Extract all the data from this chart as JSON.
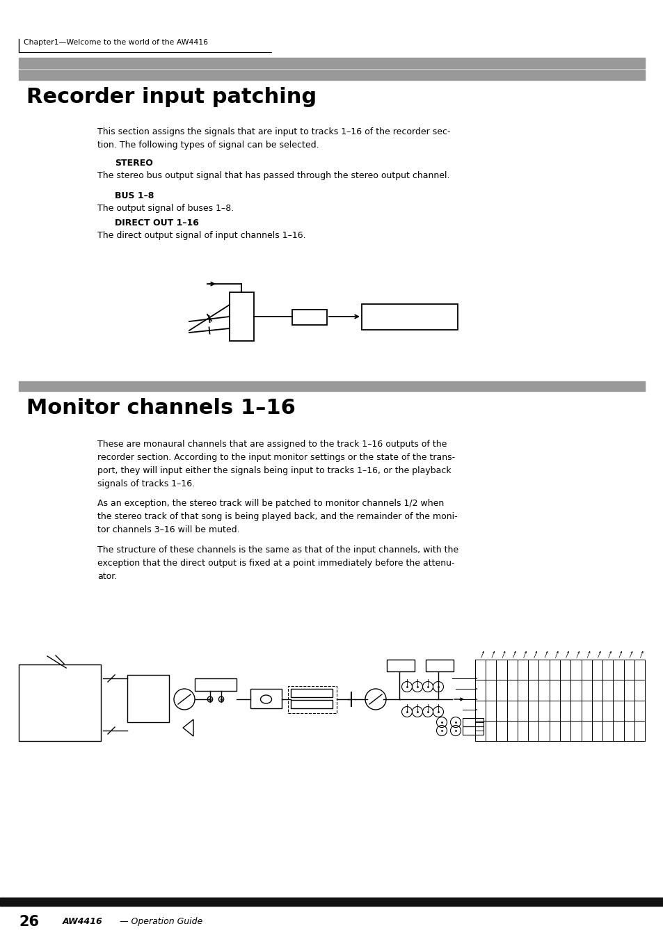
{
  "bg_color": "#ffffff",
  "page_width": 9.54,
  "page_height": 13.51,
  "dpi": 100,
  "header_text": "Chapter1—Welcome to the world of the AW4416",
  "section1_title": "Recorder input patching",
  "section1_body1": "This section assigns the signals that are input to tracks 1–16 of the recorder sec-\ntion. The following types of signal can be selected.",
  "stereo_label": "STEREO",
  "stereo_body": "The stereo bus output signal that has passed through the stereo output channel.",
  "bus_label": "BUS 1–8",
  "bus_body": "The output signal of buses 1–8.",
  "direct_label": "DIRECT OUT 1–16",
  "direct_body": "The direct output signal of input channels 1–16.",
  "section2_title": "Monitor channels 1–16",
  "section2_body1": "These are monaural channels that are assigned to the track 1–16 outputs of the\nrecorder section. According to the input monitor settings or the state of the trans-\nport, they will input either the signals being input to tracks 1–16, or the playback\nsignals of tracks 1–16.",
  "section2_body2": "As an exception, the stereo track will be patched to monitor channels 1/2 when\nthe stereo track of that song is being played back, and the remainder of the moni-\ntor channels 3–16 will be muted.",
  "section2_body3": "The structure of these channels is the same as that of the input channels, with the\nexception that the direct output is fixed at a point immediately before the attenu-\nator.",
  "footer_page": "26",
  "footer_brand": "AW4416",
  "footer_subtitle": " — Operation Guide",
  "gray_bar_color": "#999999",
  "line_color": "#000000",
  "text_color": "#000000"
}
